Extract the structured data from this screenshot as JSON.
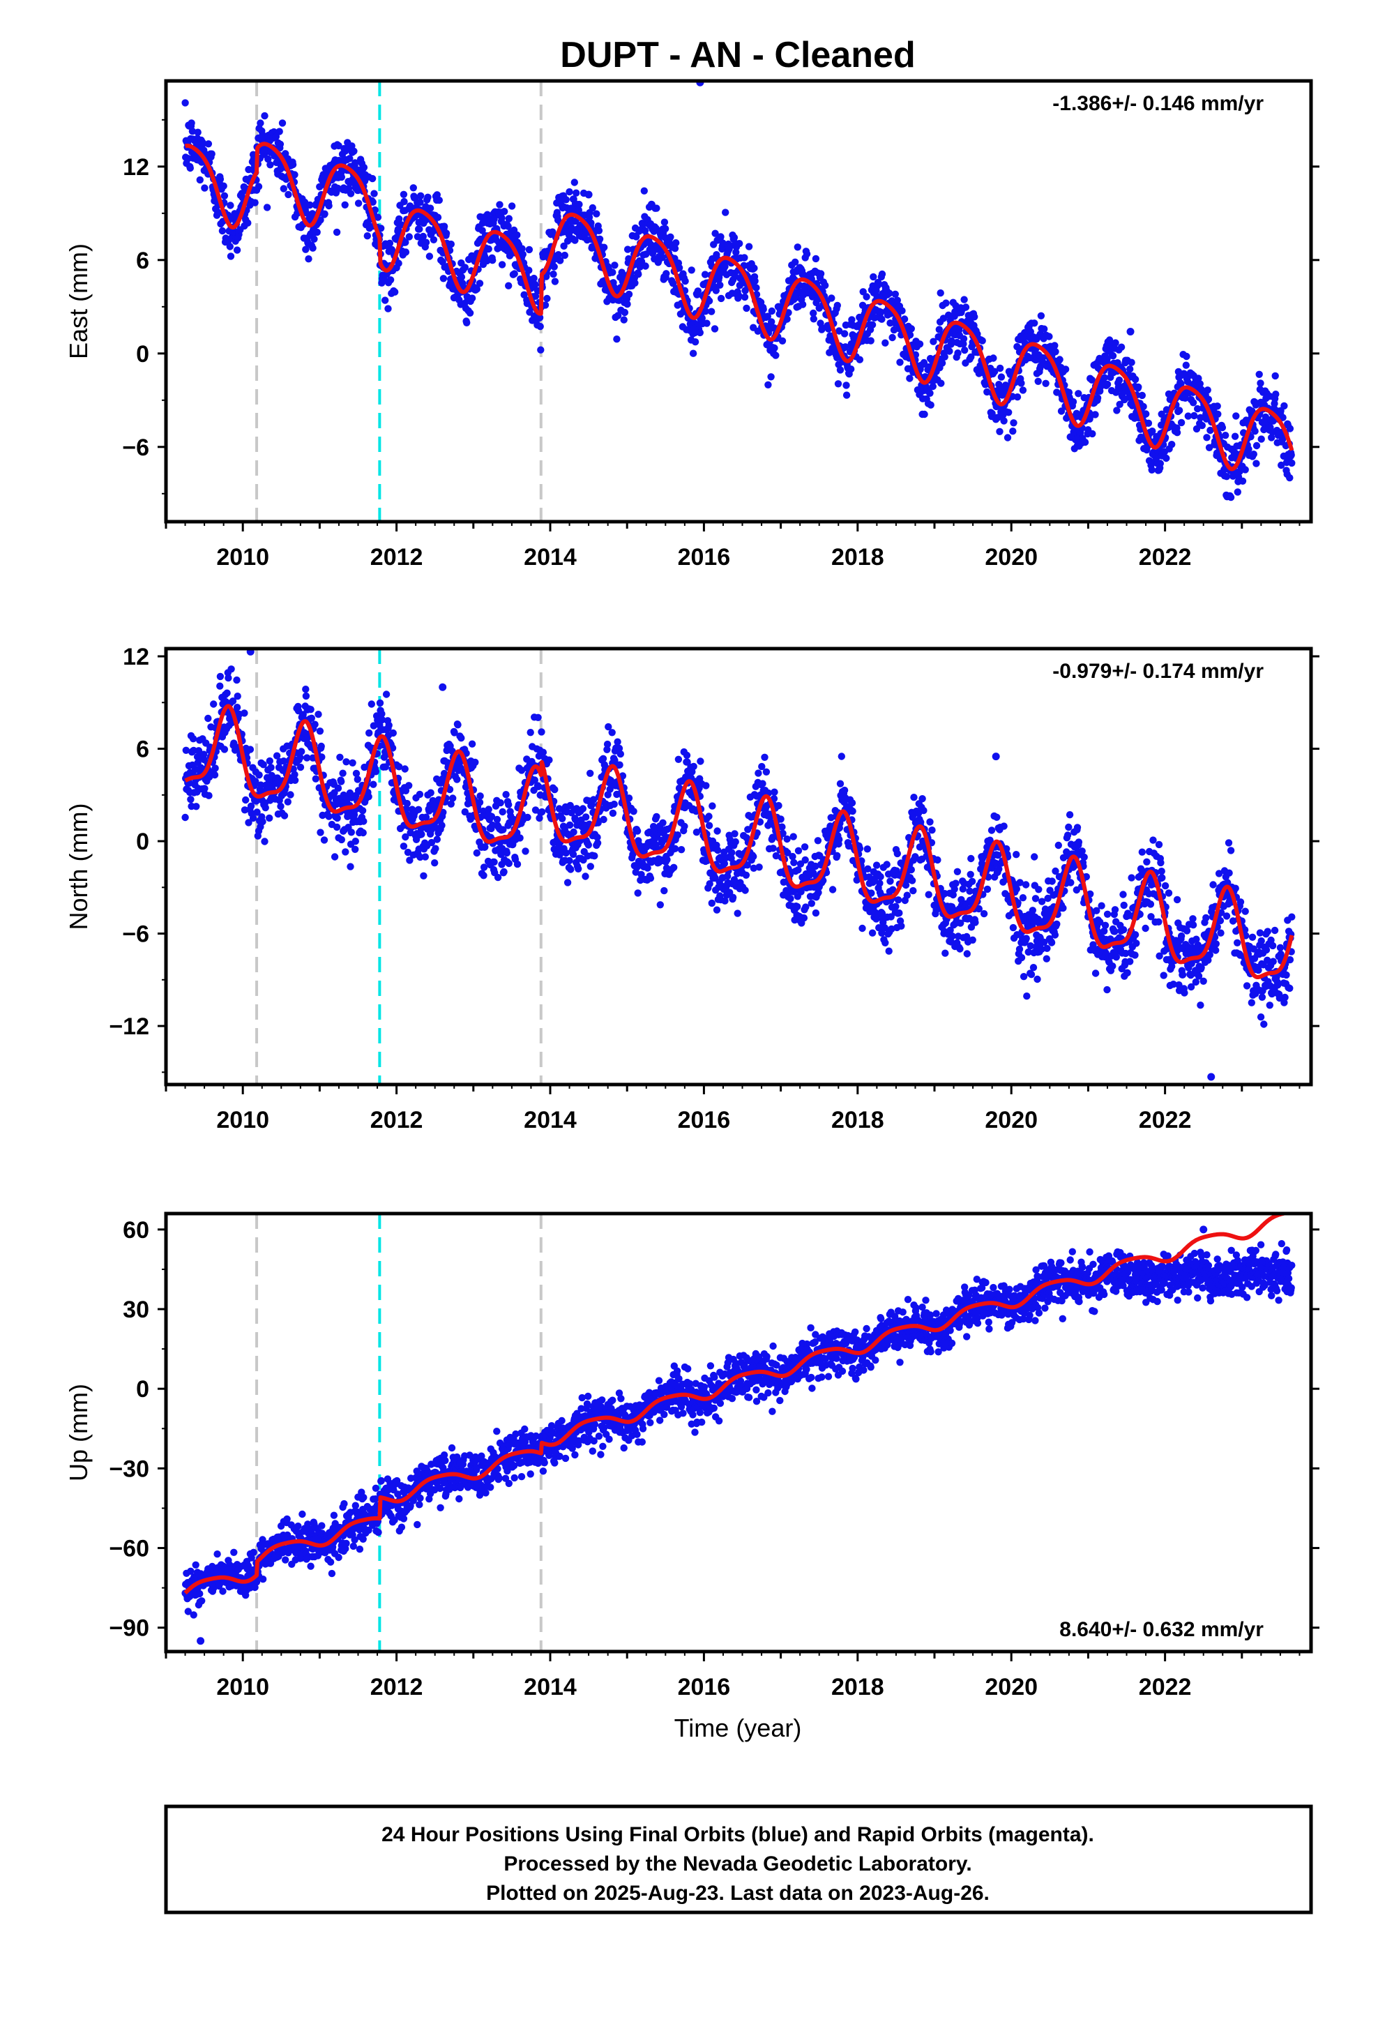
{
  "chart_data": {
    "title": "DUPT  - AN - Cleaned",
    "type": "scatter",
    "x_axis": {
      "label": "Time (year)",
      "range": [
        2009.0,
        2023.9
      ],
      "ticks": [
        2010,
        2012,
        2014,
        2016,
        2018,
        2020,
        2022
      ]
    },
    "event_lines": [
      {
        "x": 2010.18,
        "color": "#c8c8c8",
        "kind": "equipment change"
      },
      {
        "x": 2011.78,
        "color": "#00e5e5",
        "kind": "earthquake"
      },
      {
        "x": 2013.88,
        "color": "#c8c8c8",
        "kind": "equipment change"
      }
    ],
    "colors": {
      "points": "#1010ee",
      "model": "#ee1111",
      "frame": "#000000"
    },
    "panels": [
      {
        "component": "East",
        "ylabel": "East (mm)",
        "ylim": [
          -10.8,
          17.5
        ],
        "yticks": [
          -6,
          0,
          6,
          12
        ],
        "rate_text": "-1.386+/- 0.146 mm/yr",
        "rate_position": "top-right",
        "model": {
          "trend": -1.386,
          "intercept": 10.5,
          "t0": 2010.0,
          "annual_amp": 2.2,
          "annual_phase": 0.1,
          "semi_amp": 0.4,
          "semi_phase": 0.5,
          "offsets": [
            {
              "x": 2010.18,
              "d": 1.5
            },
            {
              "x": 2011.78,
              "d": -1.5
            },
            {
              "x": 2013.88,
              "d": 2.5
            }
          ]
        },
        "scatter_sd": 1.0,
        "outliers": [
          {
            "x": 2015.95,
            "y": 17.4
          },
          {
            "x": 2014.5,
            "y": 10.2
          },
          {
            "x": 2021.55,
            "y": 1.4
          }
        ]
      },
      {
        "component": "North",
        "ylabel": "North (mm)",
        "ylim": [
          -15.8,
          12.5
        ],
        "yticks": [
          -12,
          -6,
          0,
          6,
          12
        ],
        "rate_text": "-0.979+/- 0.174 mm/yr",
        "rate_position": "top-right",
        "model": {
          "trend": -0.979,
          "intercept": 5.2,
          "t0": 2010.0,
          "annual_amp": 2.6,
          "annual_phase": 0.55,
          "semi_amp": 0.8,
          "semi_phase": 0.2,
          "offsets": [
            {
              "x": 2013.88,
              "d": 1.0
            }
          ]
        },
        "scatter_sd": 1.3,
        "outliers": [
          {
            "x": 2010.1,
            "y": 12.3
          },
          {
            "x": 2022.6,
            "y": -15.3
          },
          {
            "x": 2012.6,
            "y": 10.0
          },
          {
            "x": 2019.8,
            "y": 5.5
          }
        ]
      },
      {
        "component": "Up",
        "ylabel": "Up (mm)",
        "ylim": [
          -99,
          66
        ],
        "yticks": [
          -90,
          -60,
          -30,
          0,
          30,
          60
        ],
        "rate_text": "8.640+/- 0.632 mm/yr",
        "rate_position": "bottom-right",
        "model": {
          "trend": 8.64,
          "intercept": -70,
          "t0": 2010.0,
          "annual_amp": 2.5,
          "annual_phase": 0.3,
          "semi_amp": 0.5,
          "semi_phase": 0.7,
          "offsets": [
            {
              "x": 2010.18,
              "d": 5
            },
            {
              "x": 2011.78,
              "d": 8
            },
            {
              "x": 2013.88,
              "d": 4
            }
          ]
        },
        "scatter_sd": 4.0,
        "data_saturation": {
          "after": 2021.3,
          "level": 42
        },
        "outliers": [
          {
            "x": 2009.45,
            "y": -95
          },
          {
            "x": 2022.5,
            "y": 60
          }
        ]
      }
    ],
    "data_span": [
      2009.25,
      2023.65
    ]
  },
  "footer": {
    "lines": [
      "24 Hour Positions Using Final Orbits (blue) and Rapid Orbits (magenta).",
      "Processed by the Nevada Geodetic Laboratory.",
      "Plotted on 2025-Aug-23. Last data on 2023-Aug-26."
    ]
  }
}
